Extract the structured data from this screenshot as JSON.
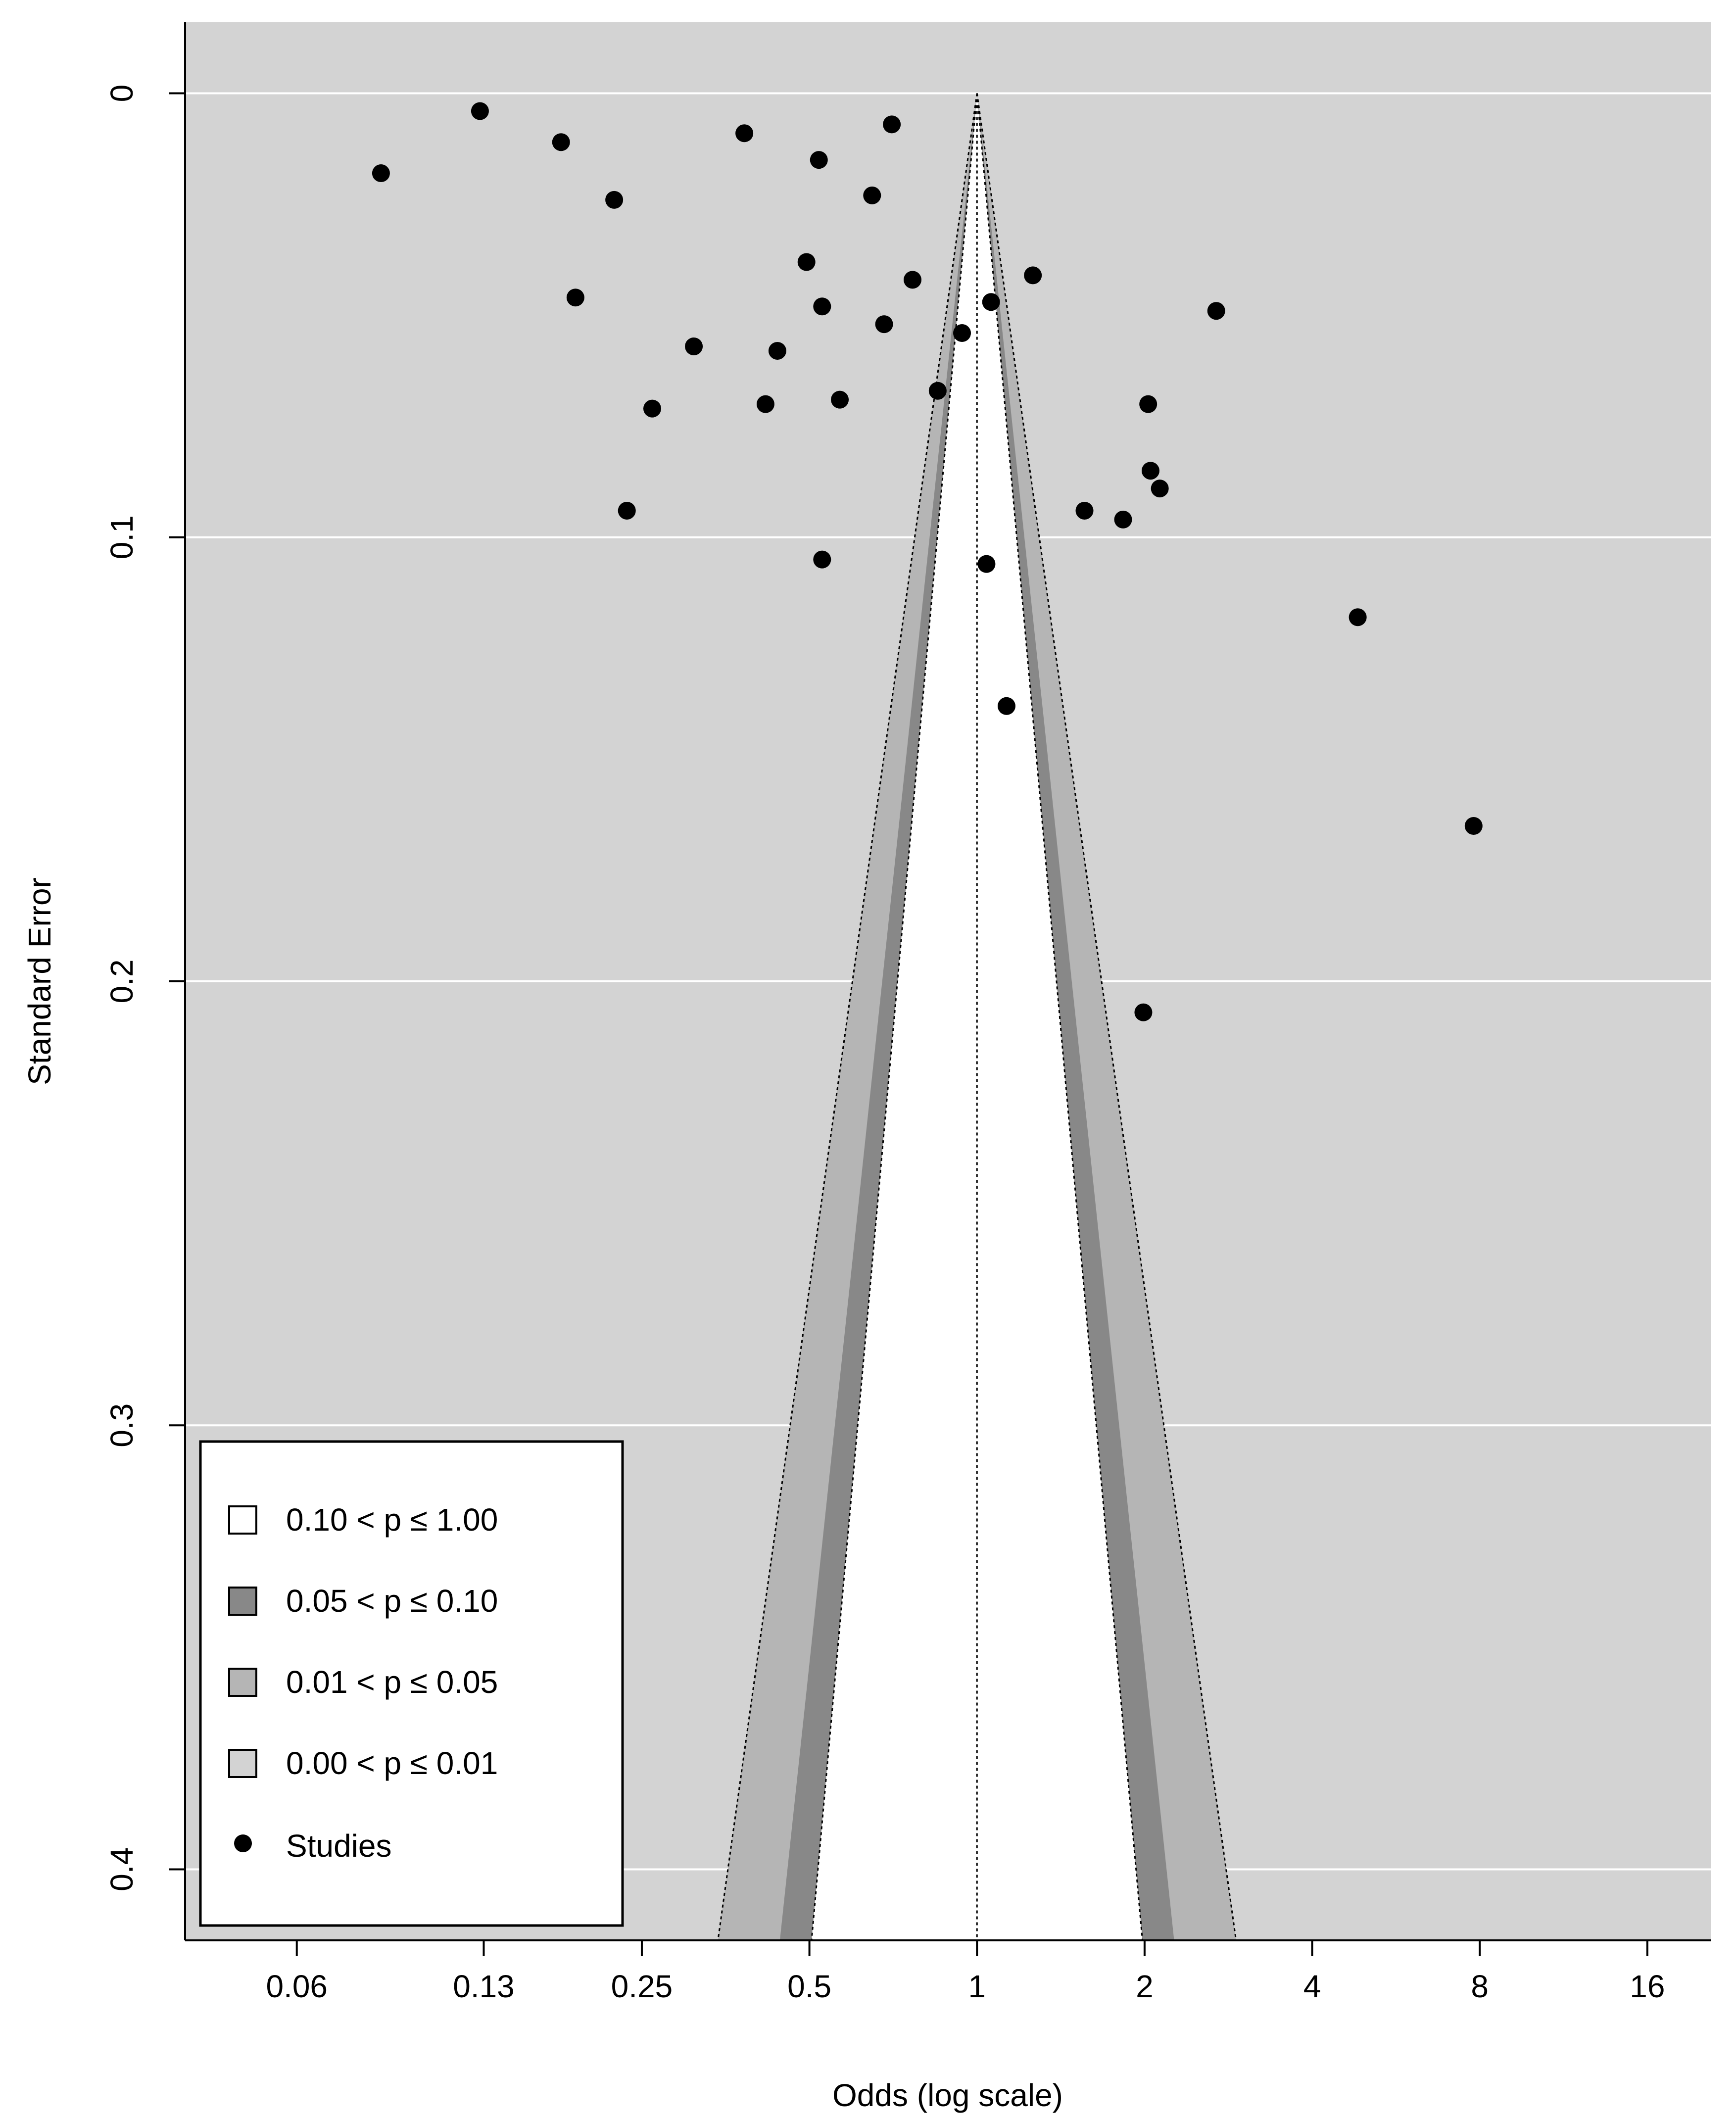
{
  "chart_data": {
    "type": "scatter",
    "subtype": "contour-enhanced funnel plot",
    "xlabel": "Odds (log scale)",
    "ylabel": "Standard Error",
    "x_scale": "log",
    "x_ticks": [
      0.06,
      0.13,
      0.25,
      0.5,
      1,
      2,
      4,
      8,
      16
    ],
    "x_tick_labels": [
      "0.06",
      "0.13",
      "0.25",
      "0.5",
      "1",
      "2",
      "4",
      "8",
      "16"
    ],
    "xlim": [
      0.0378,
      20.8
    ],
    "y_ticks": [
      0,
      0.1,
      0.2,
      0.3,
      0.4
    ],
    "y_tick_labels": [
      "0",
      "0.1",
      "0.2",
      "0.3",
      "0.4"
    ],
    "ylim": [
      0.416,
      -0.016
    ],
    "y_reversed": true,
    "grid": true,
    "reference_x": 1,
    "contour_p_levels": [
      0.1,
      0.05,
      0.01
    ],
    "colors": {
      "background": "#d3d3d3",
      "region_p_0_10_to_1": "#ffffff",
      "region_p_0_05_to_0_10": "#888888",
      "region_p_0_01_to_0_05": "#b5b5b5",
      "region_p_0_00_to_0_01": "#d3d3d3",
      "points": "#000000"
    },
    "legend": {
      "position": "bottom-left",
      "entries": [
        {
          "label": "0.10 < p ≤ 1.00",
          "color": "#ffffff"
        },
        {
          "label": "0.05 < p ≤ 0.10",
          "color": "#888888"
        },
        {
          "label": "0.01 < p ≤ 0.05",
          "color": "#b5b5b5"
        },
        {
          "label": "0.00 < p ≤ 0.01",
          "color": "#d3d3d3"
        },
        {
          "label": "Studies",
          "marker": "point"
        }
      ]
    },
    "series": [
      {
        "points": [
          {
            "x": 0.085,
            "y": 0.018
          },
          {
            "x": 0.128,
            "y": 0.004
          },
          {
            "x": 0.179,
            "y": 0.011
          },
          {
            "x": 0.19,
            "y": 0.046
          },
          {
            "x": 0.223,
            "y": 0.024
          },
          {
            "x": 0.235,
            "y": 0.094
          },
          {
            "x": 0.261,
            "y": 0.071
          },
          {
            "x": 0.31,
            "y": 0.057
          },
          {
            "x": 0.382,
            "y": 0.009
          },
          {
            "x": 0.417,
            "y": 0.07
          },
          {
            "x": 0.438,
            "y": 0.058
          },
          {
            "x": 0.494,
            "y": 0.038
          },
          {
            "x": 0.52,
            "y": 0.015
          },
          {
            "x": 0.527,
            "y": 0.048
          },
          {
            "x": 0.527,
            "y": 0.105
          },
          {
            "x": 0.567,
            "y": 0.069
          },
          {
            "x": 0.648,
            "y": 0.023
          },
          {
            "x": 0.681,
            "y": 0.052
          },
          {
            "x": 0.703,
            "y": 0.007
          },
          {
            "x": 0.766,
            "y": 0.042
          },
          {
            "x": 0.85,
            "y": 0.067
          },
          {
            "x": 0.94,
            "y": 0.054
          },
          {
            "x": 1.04,
            "y": 0.106
          },
          {
            "x": 1.06,
            "y": 0.047
          },
          {
            "x": 1.13,
            "y": 0.138
          },
          {
            "x": 1.26,
            "y": 0.041
          },
          {
            "x": 1.56,
            "y": 0.094
          },
          {
            "x": 1.83,
            "y": 0.096
          },
          {
            "x": 1.99,
            "y": 0.207
          },
          {
            "x": 2.03,
            "y": 0.07
          },
          {
            "x": 2.05,
            "y": 0.085
          },
          {
            "x": 2.13,
            "y": 0.089
          },
          {
            "x": 2.69,
            "y": 0.049
          },
          {
            "x": 4.83,
            "y": 0.118
          },
          {
            "x": 7.8,
            "y": 0.165
          }
        ]
      }
    ]
  }
}
